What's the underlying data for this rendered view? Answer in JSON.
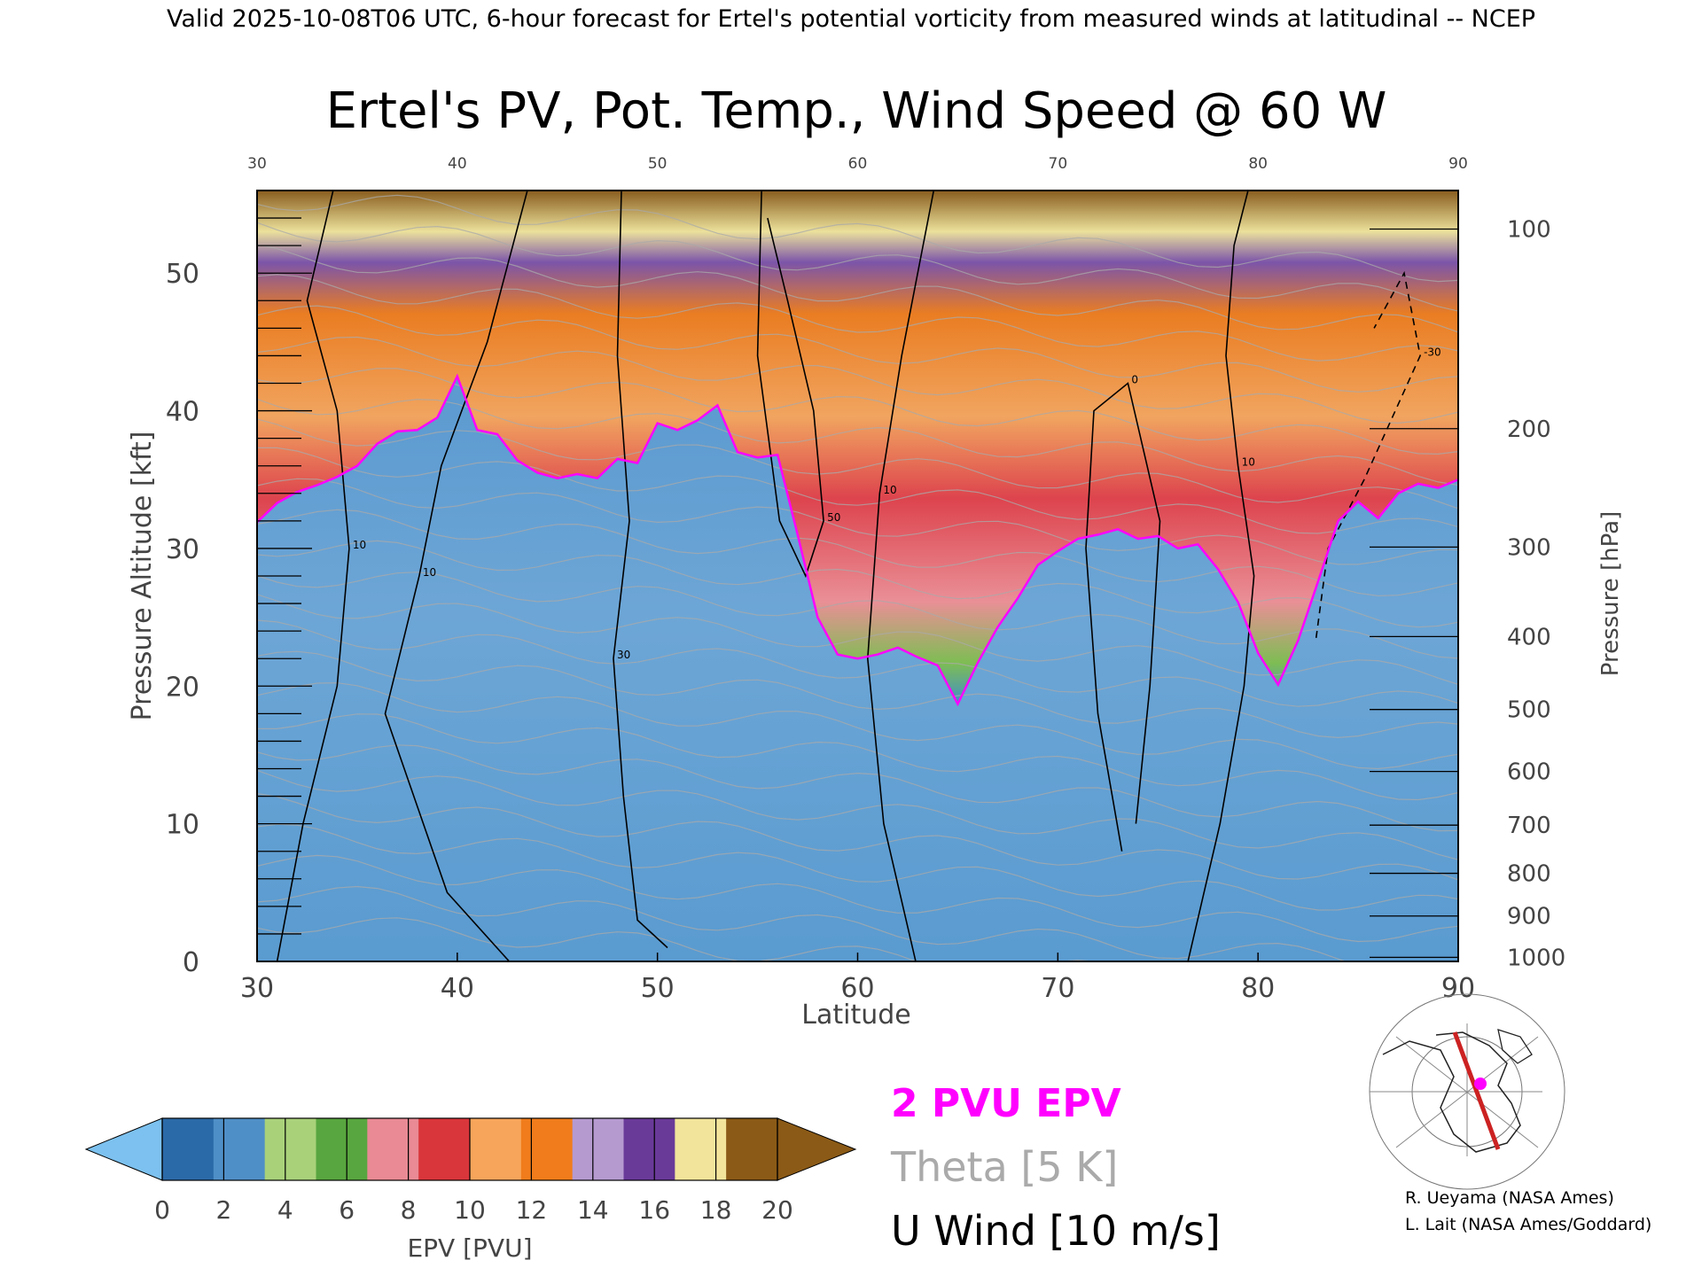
{
  "header": "Valid 2025-10-08T06 UTC, 6-hour forecast for Ertel's potential vorticity from measured winds at latitudinal -- NCEP",
  "chart_data": {
    "type": "heatmap",
    "title": "Ertel's PV, Pot. Temp., Wind Speed @ 60 W",
    "xlabel": "Latitude",
    "ylabel": "Pressure Altitude [kft]",
    "ylabel_right": "Pressure [hPa]",
    "xlim": [
      30,
      90
    ],
    "ylim": [
      0,
      56
    ],
    "x_ticks": [
      "30",
      "40",
      "50",
      "60",
      "70",
      "80",
      "90"
    ],
    "y_ticks": [
      "0",
      "10",
      "20",
      "30",
      "40",
      "50"
    ],
    "pressure_ticks": [
      {
        "label": "1000",
        "kft": 0.3
      },
      {
        "label": "900",
        "kft": 3.3
      },
      {
        "label": "800",
        "kft": 6.4
      },
      {
        "label": "700",
        "kft": 9.9
      },
      {
        "label": "600",
        "kft": 13.8
      },
      {
        "label": "500",
        "kft": 18.3
      },
      {
        "label": "400",
        "kft": 23.6
      },
      {
        "label": "300",
        "kft": 30.1
      },
      {
        "label": "200",
        "kft": 38.7
      },
      {
        "label": "100",
        "kft": 53.2
      }
    ],
    "pv_tropopause_2pvu_kft": [
      [
        30,
        31.9
      ],
      [
        31,
        33.3
      ],
      [
        32,
        34.1
      ],
      [
        33,
        34.6
      ],
      [
        34,
        35.2
      ],
      [
        35,
        36.0
      ],
      [
        36,
        37.6
      ],
      [
        37,
        38.5
      ],
      [
        38,
        38.6
      ],
      [
        39,
        39.5
      ],
      [
        40,
        42.5
      ],
      [
        41,
        38.6
      ],
      [
        42,
        38.3
      ],
      [
        43,
        36.4
      ],
      [
        44,
        35.5
      ],
      [
        45,
        35.1
      ],
      [
        46,
        35.4
      ],
      [
        47,
        35.1
      ],
      [
        48,
        36.5
      ],
      [
        49,
        36.2
      ],
      [
        50,
        39.1
      ],
      [
        51,
        38.6
      ],
      [
        52,
        39.3
      ],
      [
        53,
        40.4
      ],
      [
        54,
        37.0
      ],
      [
        55,
        36.6
      ],
      [
        56,
        36.8
      ],
      [
        57,
        31.0
      ],
      [
        58,
        25.0
      ],
      [
        59,
        22.3
      ],
      [
        60,
        22.0
      ],
      [
        61,
        22.3
      ],
      [
        62,
        22.8
      ],
      [
        63,
        22.1
      ],
      [
        64,
        21.5
      ],
      [
        65,
        18.7
      ],
      [
        66,
        21.7
      ],
      [
        67,
        24.3
      ],
      [
        68,
        26.4
      ],
      [
        69,
        28.8
      ],
      [
        70,
        29.8
      ],
      [
        71,
        30.7
      ],
      [
        72,
        31.0
      ],
      [
        73,
        31.4
      ],
      [
        74,
        30.7
      ],
      [
        75,
        30.9
      ],
      [
        76,
        30.0
      ],
      [
        77,
        30.3
      ],
      [
        78,
        28.5
      ],
      [
        79,
        26.1
      ],
      [
        80,
        22.4
      ],
      [
        81,
        20.1
      ],
      [
        82,
        23.3
      ],
      [
        83,
        27.6
      ],
      [
        84,
        32.0
      ],
      [
        85,
        33.4
      ],
      [
        86,
        32.2
      ],
      [
        87,
        34.0
      ],
      [
        88,
        34.7
      ],
      [
        89,
        34.4
      ],
      [
        90,
        35.0
      ]
    ],
    "u_wind_contours": [
      {
        "label": "10",
        "points": [
          [
            31.0,
            0
          ],
          [
            32.3,
            10
          ],
          [
            34.0,
            20
          ],
          [
            34.6,
            30
          ],
          [
            34.0,
            40
          ],
          [
            32.5,
            48
          ],
          [
            33.8,
            56
          ]
        ]
      },
      {
        "label": "10",
        "points": [
          [
            42.6,
            0
          ],
          [
            39.5,
            5
          ],
          [
            36.4,
            18
          ],
          [
            38.1,
            28
          ],
          [
            39.2,
            36
          ],
          [
            41.5,
            45
          ],
          [
            43.5,
            56
          ]
        ]
      },
      {
        "label": "30",
        "points": [
          [
            48.2,
            56
          ],
          [
            48.0,
            44
          ],
          [
            48.6,
            32
          ],
          [
            47.8,
            22
          ],
          [
            48.3,
            12
          ],
          [
            49.0,
            3
          ],
          [
            50.5,
            1
          ]
        ]
      },
      {
        "label": "50",
        "points": [
          [
            55.2,
            56
          ],
          [
            55.0,
            44
          ],
          [
            56.1,
            32
          ],
          [
            57.4,
            28
          ],
          [
            58.3,
            32
          ],
          [
            57.8,
            40
          ],
          [
            56.5,
            48
          ],
          [
            55.5,
            54
          ]
        ]
      },
      {
        "label": "10",
        "points": [
          [
            62.9,
            0
          ],
          [
            61.3,
            10
          ],
          [
            60.5,
            22
          ],
          [
            61.1,
            34
          ],
          [
            62.2,
            44
          ],
          [
            63.8,
            56
          ]
        ]
      },
      {
        "label": "0",
        "points": [
          [
            73.2,
            8
          ],
          [
            72.0,
            18
          ],
          [
            71.4,
            30
          ],
          [
            71.8,
            40
          ],
          [
            73.5,
            42
          ],
          [
            75.1,
            32
          ],
          [
            74.6,
            20
          ],
          [
            73.9,
            10
          ]
        ]
      },
      {
        "label": "10",
        "points": [
          [
            76.5,
            0
          ],
          [
            78.1,
            10
          ],
          [
            79.3,
            20
          ],
          [
            79.8,
            28
          ],
          [
            79.0,
            36
          ],
          [
            78.4,
            44
          ],
          [
            78.8,
            52
          ],
          [
            79.5,
            56
          ]
        ]
      },
      {
        "label": "-30",
        "dashed": true,
        "points": [
          [
            82.9,
            23.5
          ],
          [
            83.5,
            30
          ],
          [
            85.3,
            35
          ],
          [
            88.1,
            44
          ],
          [
            87.3,
            50
          ],
          [
            85.8,
            46
          ]
        ]
      }
    ],
    "legend": [
      {
        "label": "2 PVU EPV",
        "color": "#ff00ff"
      },
      {
        "label": "Theta [5 K]",
        "color": "#aaaaaa"
      },
      {
        "label": "U Wind [10 m/s]",
        "color": "#000000"
      }
    ],
    "colorbar": {
      "label": "EPV [PVU]",
      "ticks": [
        "0",
        "2",
        "4",
        "6",
        "8",
        "10",
        "12",
        "14",
        "16",
        "18",
        "20"
      ],
      "colors": [
        "#2b6aa8",
        "#4f8fc7",
        "#a9d17a",
        "#58a63f",
        "#e98a94",
        "#d9363b",
        "#f7a55b",
        "#f07c1b",
        "#b59ad0",
        "#6a3a99",
        "#f2e49a",
        "#8b5a16"
      ],
      "under_color": "#7cc1ef",
      "over_color": "#8b5a16"
    }
  },
  "credits": [
    "R. Ueyama (NASA Ames)",
    "L. Lait (NASA Ames/Goddard)"
  ]
}
